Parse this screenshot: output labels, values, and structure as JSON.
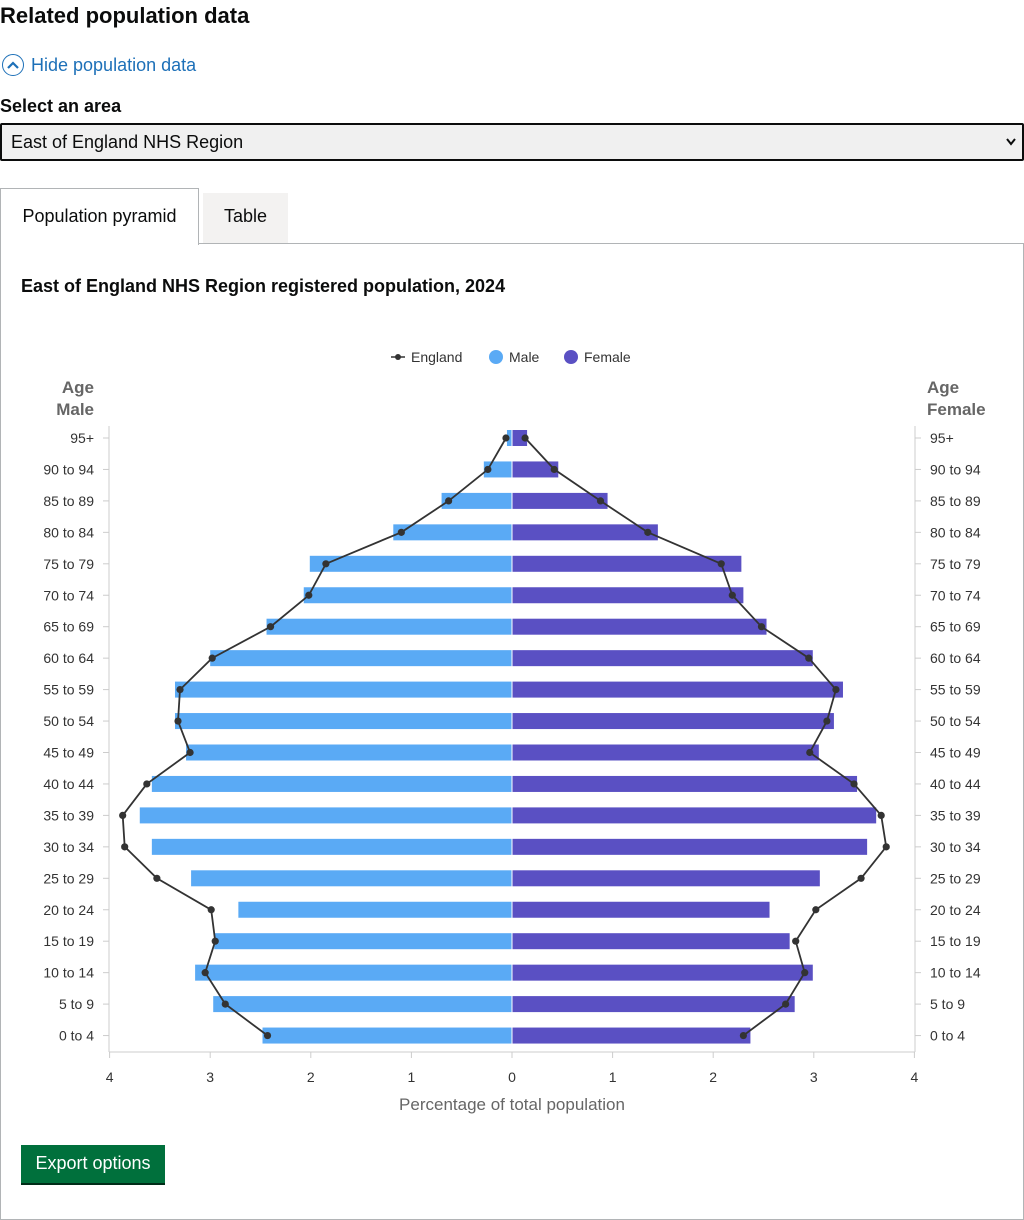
{
  "section": {
    "heading": "Related population data",
    "toggle_label": "Hide population data",
    "select_label": "Select an area",
    "select_value": "East of England NHS Region"
  },
  "tabs": [
    {
      "label": "Population pyramid",
      "active": true
    },
    {
      "label": "Table",
      "active": false
    }
  ],
  "export_label": "Export options",
  "colors": {
    "male": "#5aaaf5",
    "female": "#5a50c3",
    "england": "#333333",
    "link": "#1d70b8",
    "button": "#00703c"
  },
  "chart_data": {
    "type": "bar",
    "orientation": "horizontal-pyramid",
    "title": "East of England NHS Region registered population, 2024",
    "xlabel": "Percentage of total population",
    "left_axis_title": [
      "Age",
      "Male"
    ],
    "right_axis_title": [
      "Age",
      "Female"
    ],
    "xlim": [
      -4,
      4
    ],
    "xticks": [
      "4",
      "3",
      "2",
      "1",
      "0",
      "1",
      "2",
      "3",
      "4"
    ],
    "legend_position": "top-center",
    "categories": [
      "95+",
      "90 to 94",
      "85 to 89",
      "80 to 84",
      "75 to 79",
      "70 to 74",
      "65 to 69",
      "60 to 64",
      "55 to 59",
      "50 to 54",
      "45 to 49",
      "40 to 44",
      "35 to 39",
      "30 to 34",
      "25 to 29",
      "20 to 24",
      "15 to 19",
      "10 to 14",
      "5 to 9",
      "0 to 4"
    ],
    "series": [
      {
        "name": "England",
        "type": "line-markers",
        "male": [
          0.06,
          0.24,
          0.63,
          1.1,
          1.85,
          2.02,
          2.4,
          2.98,
          3.3,
          3.32,
          3.2,
          3.63,
          3.87,
          3.85,
          3.53,
          2.99,
          2.95,
          3.05,
          2.85,
          2.43
        ],
        "female": [
          0.13,
          0.42,
          0.88,
          1.35,
          2.08,
          2.19,
          2.48,
          2.95,
          3.22,
          3.13,
          2.96,
          3.4,
          3.67,
          3.72,
          3.47,
          3.02,
          2.82,
          2.91,
          2.72,
          2.3
        ]
      },
      {
        "name": "Male",
        "values": [
          0.05,
          0.28,
          0.7,
          1.18,
          2.01,
          2.07,
          2.44,
          3.0,
          3.35,
          3.35,
          3.24,
          3.58,
          3.7,
          3.58,
          3.19,
          2.72,
          2.96,
          3.15,
          2.97,
          2.48
        ]
      },
      {
        "name": "Female",
        "values": [
          0.15,
          0.46,
          0.95,
          1.45,
          2.28,
          2.3,
          2.53,
          2.99,
          3.29,
          3.2,
          3.05,
          3.43,
          3.62,
          3.53,
          3.06,
          2.56,
          2.76,
          2.99,
          2.81,
          2.37
        ]
      }
    ]
  }
}
